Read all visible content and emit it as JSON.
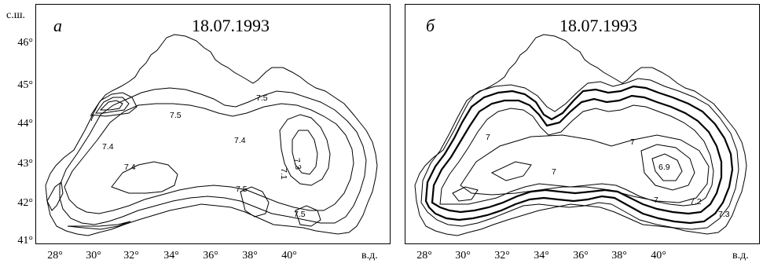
{
  "lat_unit": "с.ш.",
  "lon_unit": "в.д.",
  "lat_ticks": [
    "46°",
    "45°",
    "44°",
    "43°",
    "42°",
    "41°"
  ],
  "lon_ticks": [
    "28°",
    "30°",
    "32°",
    "34°",
    "36°",
    "38°",
    "40°"
  ],
  "panels": [
    {
      "letter": "а",
      "date": "18.07.1993",
      "isoline_labels": [
        "7.5",
        "7.5",
        "7.4",
        "7.4",
        "7.4",
        "7.1",
        "7.3",
        "7.5",
        "7.5",
        "7"
      ]
    },
    {
      "letter": "б",
      "date": "18.07.1993",
      "isoline_labels": [
        "7",
        "7",
        "7",
        "6.9",
        "7",
        "7.2",
        "7.3"
      ]
    }
  ],
  "colors": {
    "line": "#000000",
    "background": "#ffffff"
  }
}
